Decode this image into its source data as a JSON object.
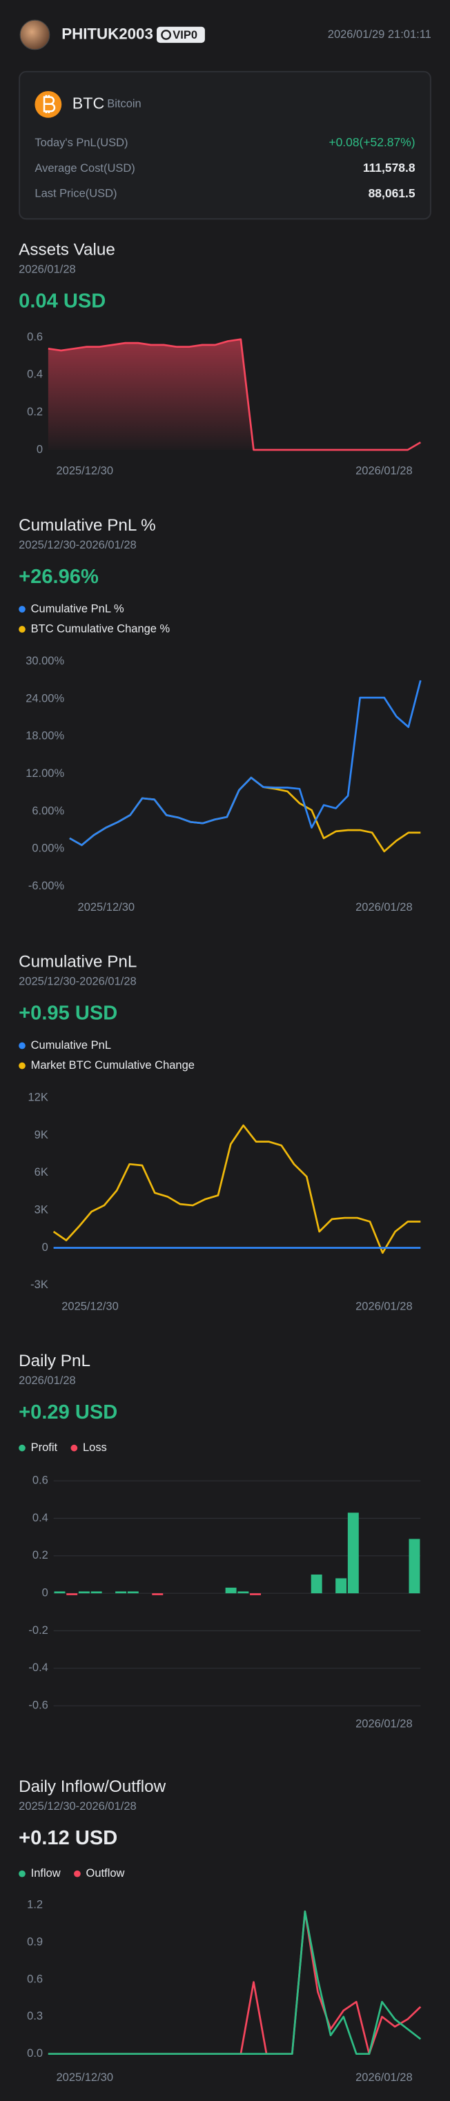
{
  "header": {
    "username": "PHITUK2003",
    "badge": "VIP0",
    "timestamp": "2026/01/29 21:01:11"
  },
  "asset_card": {
    "symbol": "BTC",
    "name": "Bitcoin",
    "rows": [
      {
        "label": "Today's PnL(USD)",
        "value": "+0.08(+52.87%)",
        "color": "#2ebd85"
      },
      {
        "label": "Average Cost(USD)",
        "value": "111,578.8",
        "color": "#eaecef"
      },
      {
        "label": "Last Price(USD)",
        "value": "88,061.5",
        "color": "#eaecef"
      }
    ]
  },
  "chart_data": [
    {
      "type": "line",
      "title": "Assets Value",
      "subtitle": "2026/01/28",
      "headline": "0.04 USD",
      "headline_color": "#2ebd85",
      "area": true,
      "grid": false,
      "categories": [
        "2025/12/30",
        null,
        null,
        null,
        null,
        null,
        null,
        null,
        null,
        null,
        null,
        null,
        null,
        null,
        null,
        null,
        null,
        null,
        null,
        null,
        null,
        null,
        null,
        null,
        null,
        null,
        null,
        null,
        null,
        "2026/01/28"
      ],
      "series": [
        {
          "name": null,
          "color": "#f6465d",
          "values": [
            0.54,
            0.53,
            0.54,
            0.55,
            0.55,
            0.56,
            0.57,
            0.57,
            0.56,
            0.56,
            0.55,
            0.55,
            0.56,
            0.56,
            0.58,
            0.59,
            0,
            0,
            0,
            0,
            0,
            0,
            0,
            0,
            0,
            0,
            0,
            0,
            0,
            0.04
          ]
        }
      ],
      "ylim": [
        0,
        0.6
      ],
      "yticks": [
        0,
        0.2,
        0.4,
        0.6
      ]
    },
    {
      "type": "line",
      "title": "Cumulative PnL %",
      "subtitle": "2025/12/30-2026/01/28",
      "headline": "+26.96%",
      "headline_color": "#2ebd85",
      "grid": false,
      "categories": [
        "2025/12/30",
        null,
        null,
        null,
        null,
        null,
        null,
        null,
        null,
        null,
        null,
        null,
        null,
        null,
        null,
        null,
        null,
        null,
        null,
        null,
        null,
        null,
        null,
        null,
        null,
        null,
        null,
        null,
        null,
        "2026/01/28"
      ],
      "series": [
        {
          "name": "Cumulative PnL %",
          "color": "#2f86f6",
          "values": [
            1.7,
            0.6,
            2.2,
            3.4,
            4.3,
            5.4,
            8.1,
            7.9,
            5.4,
            5.0,
            4.3,
            4.1,
            4.7,
            5.1,
            9.4,
            11.4,
            9.9,
            9.8,
            9.8,
            9.6,
            3.4,
            7.0,
            6.5,
            8.5,
            24.2,
            24.2,
            24.2,
            21.2,
            19.5,
            26.96
          ]
        },
        {
          "name": "BTC Cumulative Change %",
          "color": "#f0b90b",
          "values": [
            1.7,
            0.6,
            2.2,
            3.4,
            4.3,
            5.4,
            8.1,
            7.9,
            5.4,
            5.0,
            4.3,
            4.1,
            4.7,
            5.1,
            9.4,
            11.4,
            9.9,
            9.6,
            9.2,
            7.3,
            6.2,
            1.7,
            2.8,
            3.0,
            3.0,
            2.6,
            -0.4,
            1.3,
            2.6,
            2.6
          ]
        }
      ],
      "ylim": [
        -6,
        30
      ],
      "yticks": [
        {
          "value": -6,
          "label": "-6.00%"
        },
        {
          "value": 0,
          "label": "0.00%"
        },
        {
          "value": 6,
          "label": "6.00%"
        },
        {
          "value": 12,
          "label": "12.00%"
        },
        {
          "value": 18,
          "label": "18.00%"
        },
        {
          "value": 24,
          "label": "24.00%"
        },
        {
          "value": 30,
          "label": "30.00%"
        }
      ]
    },
    {
      "type": "line",
      "title": "Cumulative PnL",
      "subtitle": "2025/12/30-2026/01/28",
      "headline": "+0.95 USD",
      "headline_color": "#2ebd85",
      "grid": false,
      "categories": [
        "2025/12/30",
        null,
        null,
        null,
        null,
        null,
        null,
        null,
        null,
        null,
        null,
        null,
        null,
        null,
        null,
        null,
        null,
        null,
        null,
        null,
        null,
        null,
        null,
        null,
        null,
        null,
        null,
        null,
        null,
        "2026/01/28"
      ],
      "series": [
        {
          "name": "Cumulative PnL",
          "color": "#2f86f6",
          "values": [
            0.01,
            0,
            0.01,
            0.02,
            0.02,
            0.03,
            0.04,
            0.04,
            0.03,
            0.03,
            0.03,
            0.03,
            0.03,
            0.03,
            0.06,
            0.07,
            0.06,
            0.06,
            0.06,
            0.06,
            0.06,
            0.16,
            0.16,
            0.24,
            0.67,
            0.67,
            0.67,
            0.67,
            0.67,
            0.95
          ]
        },
        {
          "name": "Market BTC Cumulative Change",
          "color": "#f0b90b",
          "values": [
            1300,
            600,
            1700,
            2900,
            3400,
            4600,
            6700,
            6600,
            4400,
            4100,
            3500,
            3400,
            3900,
            4200,
            8300,
            9800,
            8500,
            8500,
            8200,
            6700,
            5700,
            1300,
            2300,
            2400,
            2400,
            2100,
            -400,
            1300,
            2100,
            2100
          ]
        }
      ],
      "ylim": [
        -3000,
        12000
      ],
      "yticks": [
        {
          "value": -3000,
          "label": "-3K"
        },
        0,
        {
          "value": 3000,
          "label": "3K"
        },
        {
          "value": 6000,
          "label": "6K"
        },
        {
          "value": 9000,
          "label": "9K"
        },
        {
          "value": 12000,
          "label": "12K"
        }
      ]
    },
    {
      "type": "bar",
      "title": "Daily PnL",
      "subtitle": "2026/01/28",
      "headline": "+0.29 USD",
      "headline_color": "#2ebd85",
      "grid": true,
      "legend": [
        {
          "name": "Profit",
          "color": "#2ebd85"
        },
        {
          "name": "Loss",
          "color": "#f6465d"
        }
      ],
      "categories": [
        null,
        null,
        null,
        null,
        null,
        null,
        null,
        null,
        null,
        null,
        null,
        null,
        null,
        null,
        null,
        null,
        null,
        null,
        null,
        null,
        null,
        null,
        null,
        null,
        null,
        null,
        null,
        null,
        null,
        "2026/01/28"
      ],
      "values": [
        0.01,
        -0.01,
        0.01,
        0.01,
        0,
        0.01,
        0.01,
        0,
        -0.01,
        0,
        0,
        0,
        0,
        0,
        0.03,
        0.01,
        -0.01,
        0,
        0,
        0,
        0,
        0.1,
        0,
        0.08,
        0.43,
        0,
        0,
        0,
        0,
        0.29
      ],
      "ylim": [
        -0.6,
        0.6
      ],
      "yticks": [
        -0.6,
        -0.4,
        -0.2,
        0,
        0.2,
        0.4,
        0.6
      ]
    },
    {
      "type": "line",
      "title": "Daily Inflow/Outflow",
      "subtitle": "2025/12/30-2026/01/28",
      "headline": "+0.12 USD",
      "headline_color": "#eaecef",
      "grid": false,
      "legend_horizontal": true,
      "categories": [
        "2025/12/30",
        null,
        null,
        null,
        null,
        null,
        null,
        null,
        null,
        null,
        null,
        null,
        null,
        null,
        null,
        null,
        null,
        null,
        null,
        null,
        null,
        null,
        null,
        null,
        null,
        null,
        null,
        null,
        null,
        "2026/01/28"
      ],
      "series": [
        {
          "name": "Inflow",
          "color": "#2ebd85",
          "values": [
            0,
            0,
            0,
            0,
            0,
            0,
            0,
            0,
            0,
            0,
            0,
            0,
            0,
            0,
            0,
            0,
            0,
            0,
            0,
            0,
            1.15,
            0.6,
            0.15,
            0.3,
            0,
            0,
            0.42,
            0.28,
            0.2,
            0.12
          ]
        },
        {
          "name": "Outflow",
          "color": "#f6465d",
          "values": [
            0,
            0,
            0,
            0,
            0,
            0,
            0,
            0,
            0,
            0,
            0,
            0,
            0,
            0,
            0,
            0,
            0.58,
            0,
            0,
            0,
            1.15,
            0.5,
            0.2,
            0.35,
            0.42,
            0,
            0.3,
            0.22,
            0.28,
            0.38
          ]
        }
      ],
      "ylim": [
        0,
        1.2
      ],
      "yticks": [
        {
          "value": 0,
          "label": "0.0"
        },
        0.3,
        0.6,
        0.9,
        1.2
      ]
    }
  ]
}
